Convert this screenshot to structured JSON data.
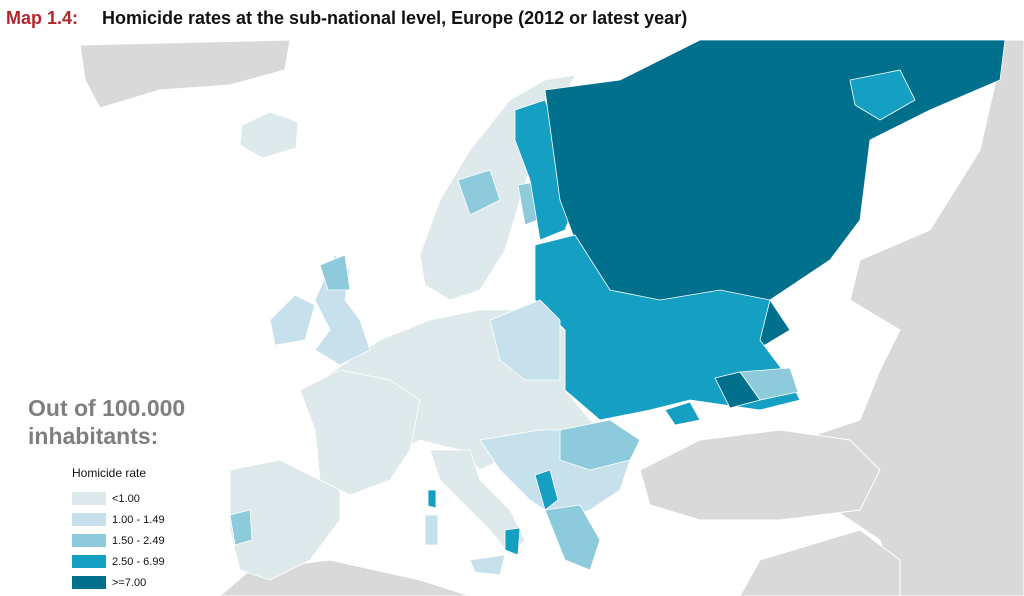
{
  "header": {
    "label": "Map 1.4:",
    "title": "Homicide rates at the sub-national level, Europe (2012 or latest year)"
  },
  "note": {
    "lines": [
      "Out of 100.000",
      "inhabitants:"
    ]
  },
  "legend": {
    "title": "Homicide rate",
    "items": [
      {
        "label": "<1.00",
        "color": "#dde9ea"
      },
      {
        "label": "1.00 - 1.49",
        "color": "#c6e1ec"
      },
      {
        "label": "1.50 - 2.49",
        "color": "#8ccadc"
      },
      {
        "label": "2.50 - 6.99",
        "color": "#15a0c3"
      },
      {
        "label": ">=7.00",
        "color": "#00708d"
      }
    ]
  }
}
